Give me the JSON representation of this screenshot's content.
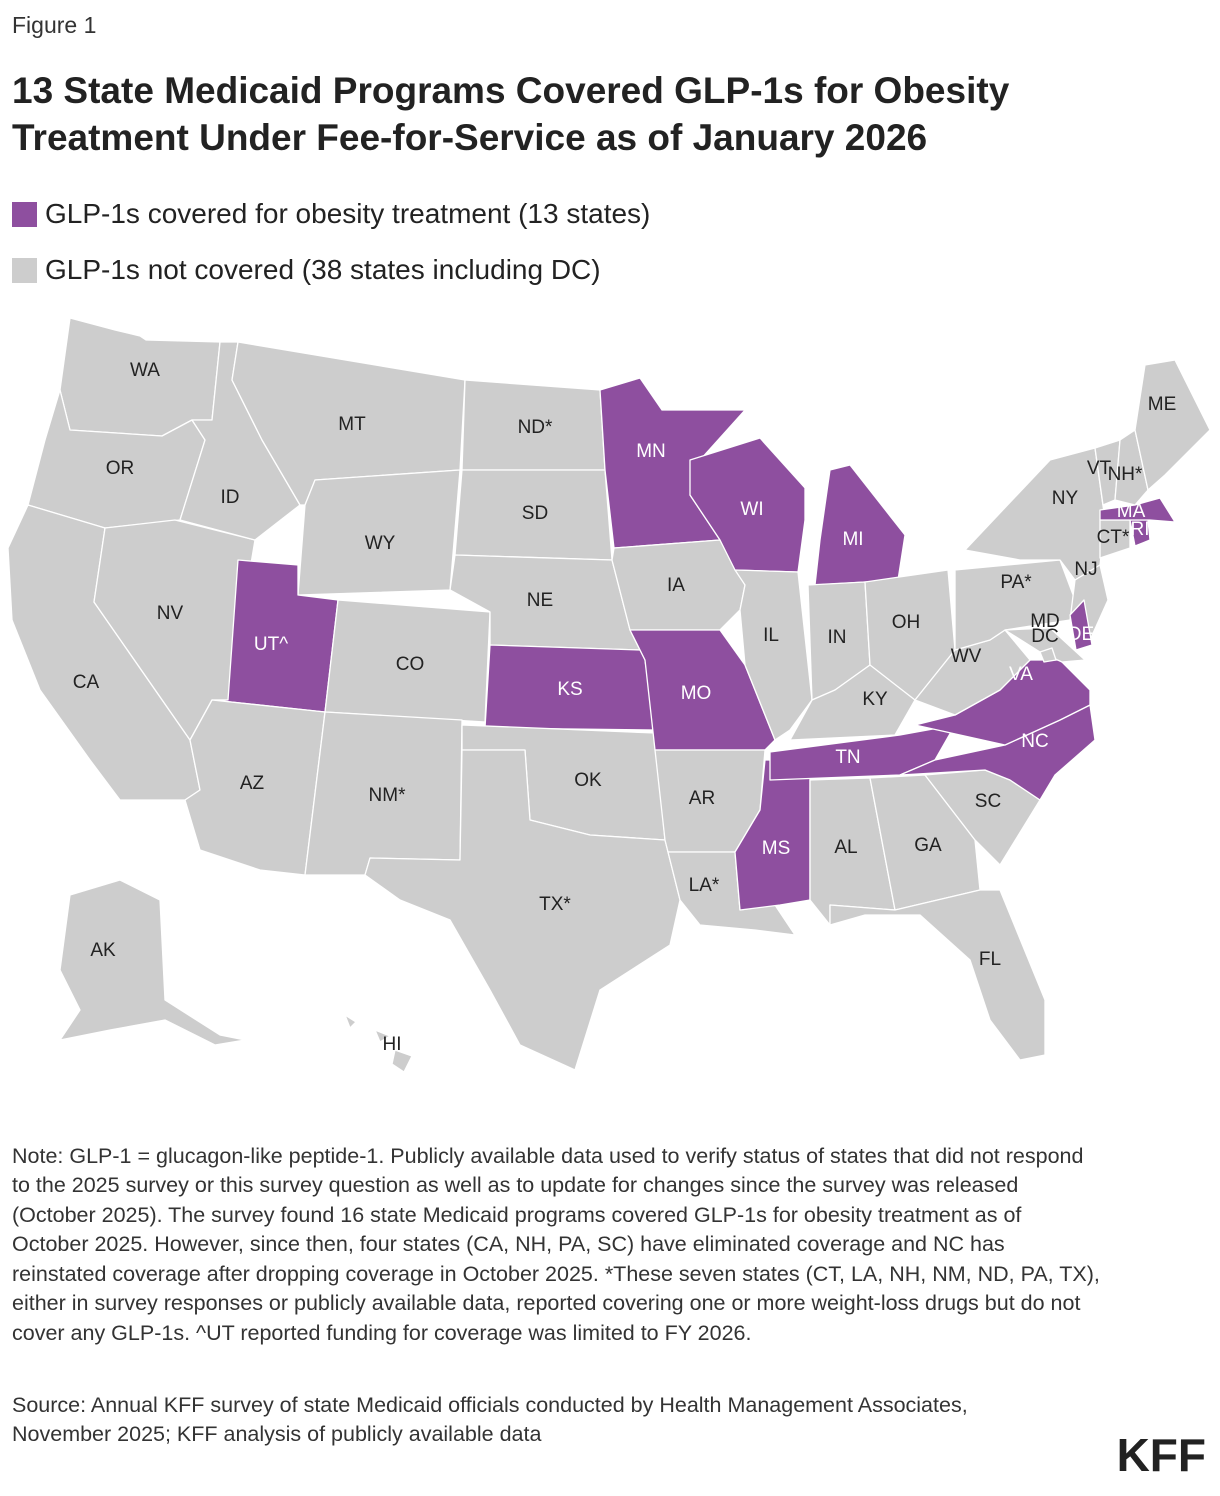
{
  "figure_label": "Figure 1",
  "title": "13 State Medicaid Programs Covered GLP-1s for Obesity Treatment Under Fee-for-Service as of January 2026",
  "colors": {
    "covered": "#8e4f9f",
    "not_covered": "#cdcdcd",
    "border": "#ffffff"
  },
  "legend": [
    {
      "key": "covered",
      "label": "GLP-1s covered for obesity treatment (13 states)"
    },
    {
      "key": "not_covered",
      "label": "GLP-1s not covered (38 states including DC)"
    }
  ],
  "map_data": {
    "type": "choropleth",
    "states": [
      {
        "label": "WA",
        "status": "not_covered"
      },
      {
        "label": "OR",
        "status": "not_covered"
      },
      {
        "label": "CA",
        "status": "not_covered"
      },
      {
        "label": "NV",
        "status": "not_covered"
      },
      {
        "label": "ID",
        "status": "not_covered"
      },
      {
        "label": "MT",
        "status": "not_covered"
      },
      {
        "label": "WY",
        "status": "not_covered"
      },
      {
        "label": "UT^",
        "status": "covered"
      },
      {
        "label": "AZ",
        "status": "not_covered"
      },
      {
        "label": "CO",
        "status": "not_covered"
      },
      {
        "label": "NM*",
        "status": "not_covered"
      },
      {
        "label": "ND*",
        "status": "not_covered"
      },
      {
        "label": "SD",
        "status": "not_covered"
      },
      {
        "label": "NE",
        "status": "not_covered"
      },
      {
        "label": "KS",
        "status": "covered"
      },
      {
        "label": "OK",
        "status": "not_covered"
      },
      {
        "label": "TX*",
        "status": "not_covered"
      },
      {
        "label": "MN",
        "status": "covered"
      },
      {
        "label": "IA",
        "status": "not_covered"
      },
      {
        "label": "MO",
        "status": "covered"
      },
      {
        "label": "AR",
        "status": "not_covered"
      },
      {
        "label": "LA*",
        "status": "not_covered"
      },
      {
        "label": "WI",
        "status": "covered"
      },
      {
        "label": "IL",
        "status": "not_covered"
      },
      {
        "label": "MS",
        "status": "covered"
      },
      {
        "label": "MI",
        "status": "covered"
      },
      {
        "label": "IN",
        "status": "not_covered"
      },
      {
        "label": "KY",
        "status": "not_covered"
      },
      {
        "label": "TN",
        "status": "covered"
      },
      {
        "label": "AL",
        "status": "not_covered"
      },
      {
        "label": "OH",
        "status": "not_covered"
      },
      {
        "label": "GA",
        "status": "not_covered"
      },
      {
        "label": "FL",
        "status": "not_covered"
      },
      {
        "label": "SC",
        "status": "not_covered"
      },
      {
        "label": "NC",
        "status": "covered"
      },
      {
        "label": "VA",
        "status": "covered"
      },
      {
        "label": "WV",
        "status": "not_covered"
      },
      {
        "label": "PA*",
        "status": "not_covered"
      },
      {
        "label": "NY",
        "status": "not_covered"
      },
      {
        "label": "NJ",
        "status": "not_covered"
      },
      {
        "label": "MD",
        "status": "not_covered"
      },
      {
        "label": "DC",
        "status": "not_covered"
      },
      {
        "label": "DE",
        "status": "covered"
      },
      {
        "label": "CT*",
        "status": "not_covered"
      },
      {
        "label": "RI",
        "status": "covered"
      },
      {
        "label": "MA",
        "status": "covered"
      },
      {
        "label": "VT",
        "status": "not_covered"
      },
      {
        "label": "NH*",
        "status": "not_covered"
      },
      {
        "label": "ME",
        "status": "not_covered"
      },
      {
        "label": "AK",
        "status": "not_covered"
      },
      {
        "label": "HI",
        "status": "not_covered"
      }
    ]
  },
  "note": "Note: GLP-1 = glucagon-like peptide-1. Publicly available data used to verify status of states that did not respond to the 2025 survey or this survey question as well as to update for changes since the survey was released (October 2025). The survey found 16 state Medicaid programs covered GLP-1s for obesity treatment as of October 2025. However, since then, four states (CA, NH, PA, SC) have eliminated coverage and NC has reinstated coverage after dropping coverage in October 2025. *These seven states (CT, LA, NH, NM, ND, PA, TX), either in survey responses or publicly available data, reported covering one or more weight-loss drugs but do not cover any GLP-1s. ^UT reported funding for coverage was limited to FY 2026.",
  "source": "Source: Annual KFF survey of state Medicaid officials conducted by Health Management Associates, November 2025; KFF analysis of publicly available data",
  "logo": "KFF"
}
